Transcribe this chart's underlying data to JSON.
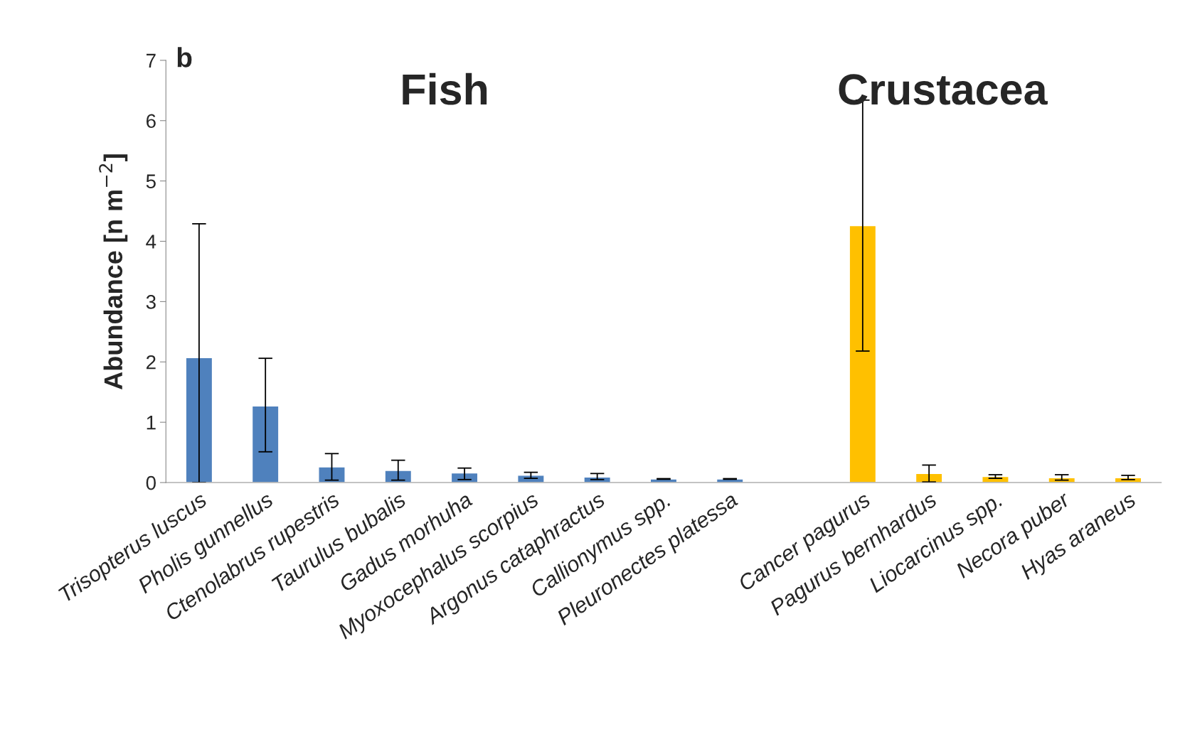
{
  "chart_data": {
    "type": "bar",
    "title": "b",
    "annotations": [
      "Fish",
      "Crustacea"
    ],
    "ylabel": "Abundance [n m$^{−2}$]",
    "categories": [
      "Trisopterus luscus",
      "Pholis gunnellus",
      "Ctenolabrus rupestris",
      "Taurulus bubalis",
      "Gadus morhuha",
      "Myoxocephalus scorpius",
      "Argonus cataphractus",
      "Callionymus spp.",
      "Pleuronectes platessa",
      null,
      "Cancer pagurus",
      "Pagurus bernhardus",
      "Liocarcinus spp.",
      "Necora puber",
      "Hyas araneus"
    ],
    "values": [
      2.07,
      1.27,
      0.26,
      0.2,
      0.16,
      0.12,
      0.09,
      0.06,
      0.06,
      null,
      4.26,
      0.15,
      0.1,
      0.08,
      0.08
    ],
    "errors": [
      [
        0,
        4.29
      ],
      [
        0.51,
        2.06
      ],
      [
        0.04,
        0.48
      ],
      [
        0.04,
        0.37
      ],
      [
        0.05,
        0.24
      ],
      [
        0.07,
        0.17
      ],
      [
        0.05,
        0.15
      ],
      [
        0.055,
        0.065
      ],
      [
        0.055,
        0.065
      ],
      null,
      [
        2.18,
        6.34
      ],
      [
        0.01,
        0.29
      ],
      [
        0.07,
        0.13
      ],
      [
        0.04,
        0.13
      ],
      [
        0.05,
        0.12
      ]
    ],
    "colors": [
      "#4f81bd",
      "#4f81bd",
      "#4f81bd",
      "#4f81bd",
      "#4f81bd",
      "#4f81bd",
      "#4f81bd",
      "#4f81bd",
      "#4f81bd",
      "#4f81bd",
      "#ffc000",
      "#ffc000",
      "#ffc000",
      "#ffc000",
      "#ffc000"
    ],
    "ylim": [
      0,
      7
    ],
    "yticks": [
      0,
      1,
      2,
      3,
      4,
      5,
      6,
      7
    ],
    "grid": false,
    "legend": false
  }
}
